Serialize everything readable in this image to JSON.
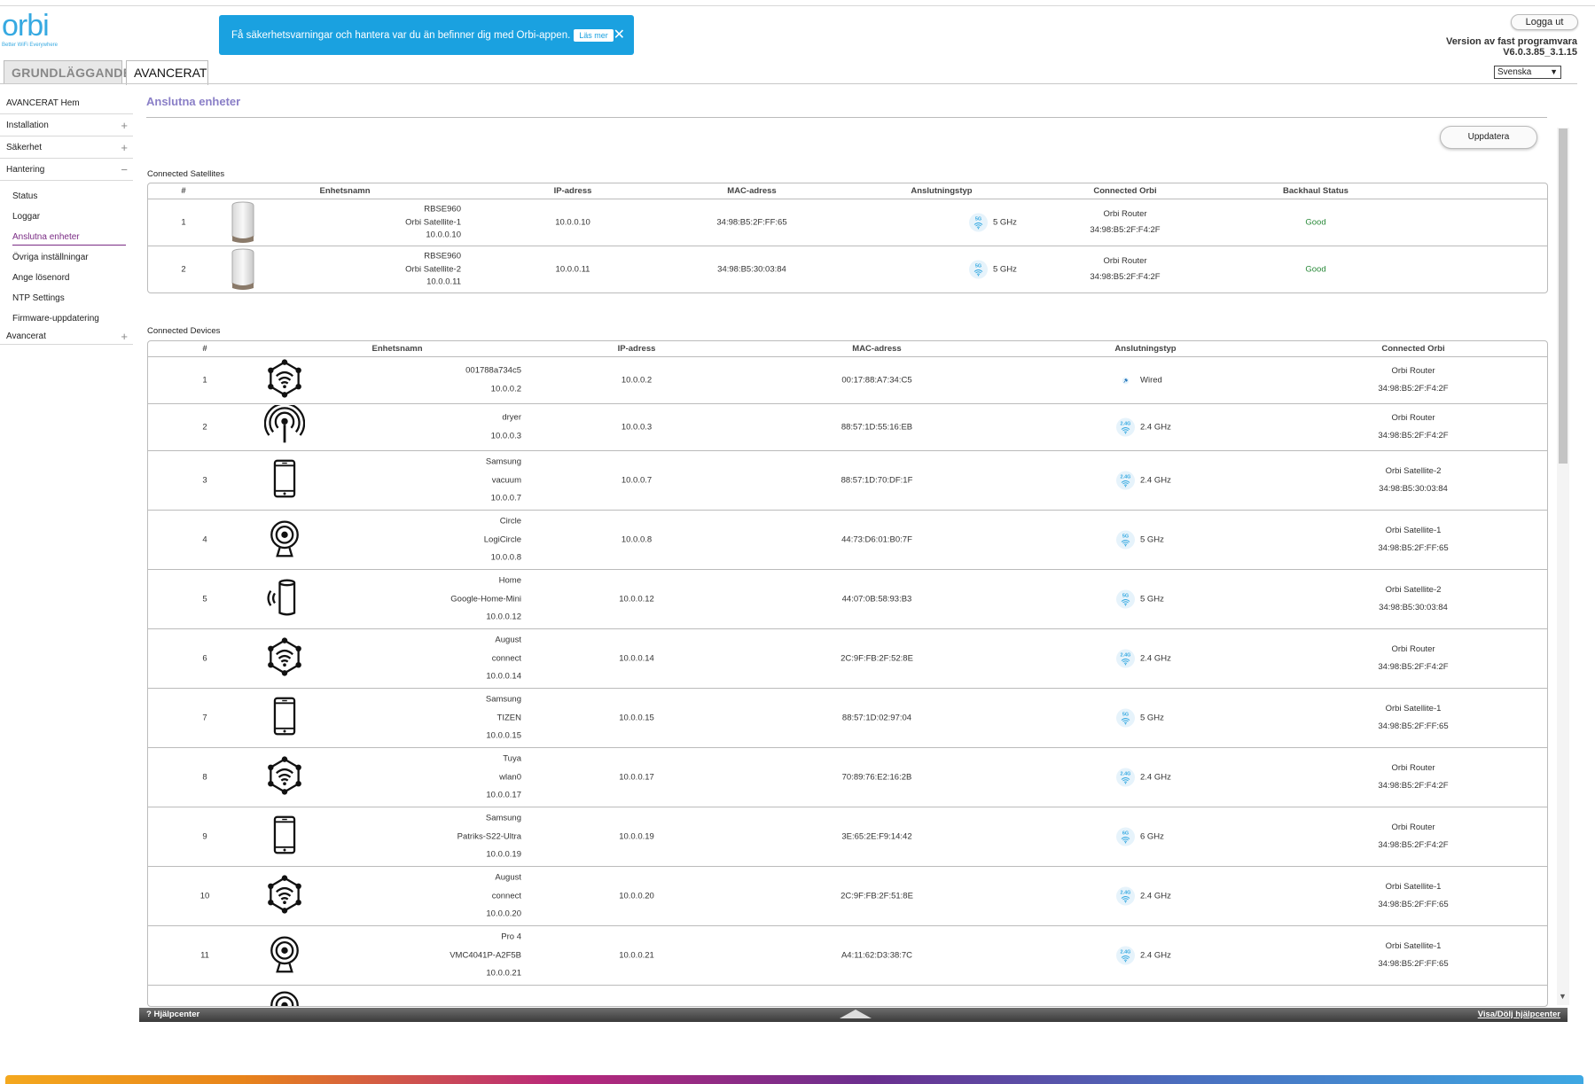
{
  "brand": {
    "logo_text": "orbi",
    "tagline": "Better WiFi Everywhere",
    "accent": "#36a9e1"
  },
  "banner": {
    "message": "Få säkerhetsvarningar och hantera var du än befinner dig med Orbi-appen.",
    "more_label": "Läs mer",
    "close_icon": "close-icon"
  },
  "header": {
    "logout_label": "Logga ut",
    "firmware_label": "Version av fast programvara",
    "firmware_version": "V6.0.3.85_3.1.15",
    "language": "Svenska"
  },
  "tabs": [
    {
      "label": "GRUNDLÄGGANDE",
      "active": false
    },
    {
      "label": "AVANCERAT",
      "active": true
    }
  ],
  "sidebar": {
    "items": [
      {
        "label": "AVANCERAT Hem",
        "expand": ""
      },
      {
        "label": "Installation",
        "expand": "+"
      },
      {
        "label": "Säkerhet",
        "expand": "+"
      },
      {
        "label": "Hantering",
        "expand": "−"
      }
    ],
    "subitems": [
      {
        "label": "Status",
        "active": false
      },
      {
        "label": "Loggar",
        "active": false
      },
      {
        "label": "Anslutna enheter",
        "active": true
      },
      {
        "label": "Övriga inställningar",
        "active": false
      },
      {
        "label": "Ange lösenord",
        "active": false
      },
      {
        "label": "NTP Settings",
        "active": false
      },
      {
        "label": "Firmware-uppdatering",
        "active": false
      }
    ],
    "last": {
      "label": "Avancerat",
      "expand": "+"
    }
  },
  "main": {
    "title": "Anslutna enheter",
    "refresh_label": "Uppdatera"
  },
  "satellites": {
    "label": "Connected Satellites",
    "headers": [
      "#",
      "Enhetsnamn",
      "IP-adress",
      "MAC-adress",
      "Anslutningstyp",
      "Connected Orbi",
      "Backhaul Status"
    ],
    "rows": [
      {
        "num": "1",
        "model": "RBSE960",
        "name": "Orbi Satellite-1",
        "name_ip": "10.0.0.10",
        "ip": "10.0.0.10",
        "mac": "34:98:B5:2F:FF:65",
        "band": "5G",
        "conn": "5 GHz",
        "orbi": "Orbi Router",
        "orbi_mac": "34:98:B5:2F:F4:2F",
        "status": "Good"
      },
      {
        "num": "2",
        "model": "RBSE960",
        "name": "Orbi Satellite-2",
        "name_ip": "10.0.0.11",
        "ip": "10.0.0.11",
        "mac": "34:98:B5:30:03:84",
        "band": "5G",
        "conn": "5 GHz",
        "orbi": "Orbi Router",
        "orbi_mac": "34:98:B5:2F:F4:2F",
        "status": "Good"
      }
    ]
  },
  "devices": {
    "label": "Connected Devices",
    "headers": [
      "#",
      "Enhetsnamn",
      "IP-adress",
      "MAC-adress",
      "Anslutningstyp",
      "Connected Orbi"
    ],
    "rows": [
      {
        "num": "1",
        "icon": "hub-icon",
        "lines": [
          "001788a734c5",
          "10.0.0.2"
        ],
        "ip": "10.0.0.2",
        "mac": "00:17:88:A7:34:C5",
        "band": "",
        "conn": "Wired",
        "orbi": "Orbi Router",
        "orbi_mac": "34:98:B5:2F:F4:2F"
      },
      {
        "num": "2",
        "icon": "antenna-icon",
        "lines": [
          "dryer",
          "10.0.0.3"
        ],
        "ip": "10.0.0.3",
        "mac": "88:57:1D:55:16:EB",
        "band": "2.4G",
        "conn": "2.4 GHz",
        "orbi": "Orbi Router",
        "orbi_mac": "34:98:B5:2F:F4:2F"
      },
      {
        "num": "3",
        "icon": "phone-icon",
        "lines": [
          "Samsung",
          "vacuum",
          "10.0.0.7"
        ],
        "ip": "10.0.0.7",
        "mac": "88:57:1D:70:DF:1F",
        "band": "2.4G",
        "conn": "2.4 GHz",
        "orbi": "Orbi Satellite-2",
        "orbi_mac": "34:98:B5:30:03:84"
      },
      {
        "num": "4",
        "icon": "camera-icon",
        "lines": [
          "Circle",
          "LogiCircle",
          "10.0.0.8"
        ],
        "ip": "10.0.0.8",
        "mac": "44:73:D6:01:B0:7F",
        "band": "5G",
        "conn": "5 GHz",
        "orbi": "Orbi Satellite-1",
        "orbi_mac": "34:98:B5:2F:FF:65"
      },
      {
        "num": "5",
        "icon": "speaker-icon",
        "lines": [
          "Home",
          "Google-Home-Mini",
          "10.0.0.12"
        ],
        "ip": "10.0.0.12",
        "mac": "44:07:0B:58:93:B3",
        "band": "5G",
        "conn": "5 GHz",
        "orbi": "Orbi Satellite-2",
        "orbi_mac": "34:98:B5:30:03:84"
      },
      {
        "num": "6",
        "icon": "hub-icon",
        "lines": [
          "August",
          "connect",
          "10.0.0.14"
        ],
        "ip": "10.0.0.14",
        "mac": "2C:9F:FB:2F:52:8E",
        "band": "2.4G",
        "conn": "2.4 GHz",
        "orbi": "Orbi Router",
        "orbi_mac": "34:98:B5:2F:F4:2F"
      },
      {
        "num": "7",
        "icon": "phone-icon",
        "lines": [
          "Samsung",
          "TIZEN",
          "10.0.0.15"
        ],
        "ip": "10.0.0.15",
        "mac": "88:57:1D:02:97:04",
        "band": "5G",
        "conn": "5 GHz",
        "orbi": "Orbi Satellite-1",
        "orbi_mac": "34:98:B5:2F:FF:65"
      },
      {
        "num": "8",
        "icon": "hub-icon",
        "lines": [
          "Tuya",
          "wlan0",
          "10.0.0.17"
        ],
        "ip": "10.0.0.17",
        "mac": "70:89:76:E2:16:2B",
        "band": "2.4G",
        "conn": "2.4 GHz",
        "orbi": "Orbi Router",
        "orbi_mac": "34:98:B5:2F:F4:2F"
      },
      {
        "num": "9",
        "icon": "phone-icon",
        "lines": [
          "Samsung",
          "Patriks-S22-Ultra",
          "10.0.0.19"
        ],
        "ip": "10.0.0.19",
        "mac": "3E:65:2E:F9:14:42",
        "band": "6G",
        "conn": "6 GHz",
        "orbi": "Orbi Router",
        "orbi_mac": "34:98:B5:2F:F4:2F"
      },
      {
        "num": "10",
        "icon": "hub-icon",
        "lines": [
          "August",
          "connect",
          "10.0.0.20"
        ],
        "ip": "10.0.0.20",
        "mac": "2C:9F:FB:2F:51:8E",
        "band": "2.4G",
        "conn": "2.4 GHz",
        "orbi": "Orbi Satellite-1",
        "orbi_mac": "34:98:B5:2F:FF:65"
      },
      {
        "num": "11",
        "icon": "camera-icon",
        "lines": [
          "Pro 4",
          "VMC4041P-A2F5B",
          "10.0.0.21"
        ],
        "ip": "10.0.0.21",
        "mac": "A4:11:62:D3:38:7C",
        "band": "2.4G",
        "conn": "2.4 GHz",
        "orbi": "Orbi Satellite-1",
        "orbi_mac": "34:98:B5:2F:FF:65"
      }
    ]
  },
  "helpbar": {
    "left_label": "Hjälpcenter",
    "right_label": "Visa/Dölj hjälpcenter"
  }
}
